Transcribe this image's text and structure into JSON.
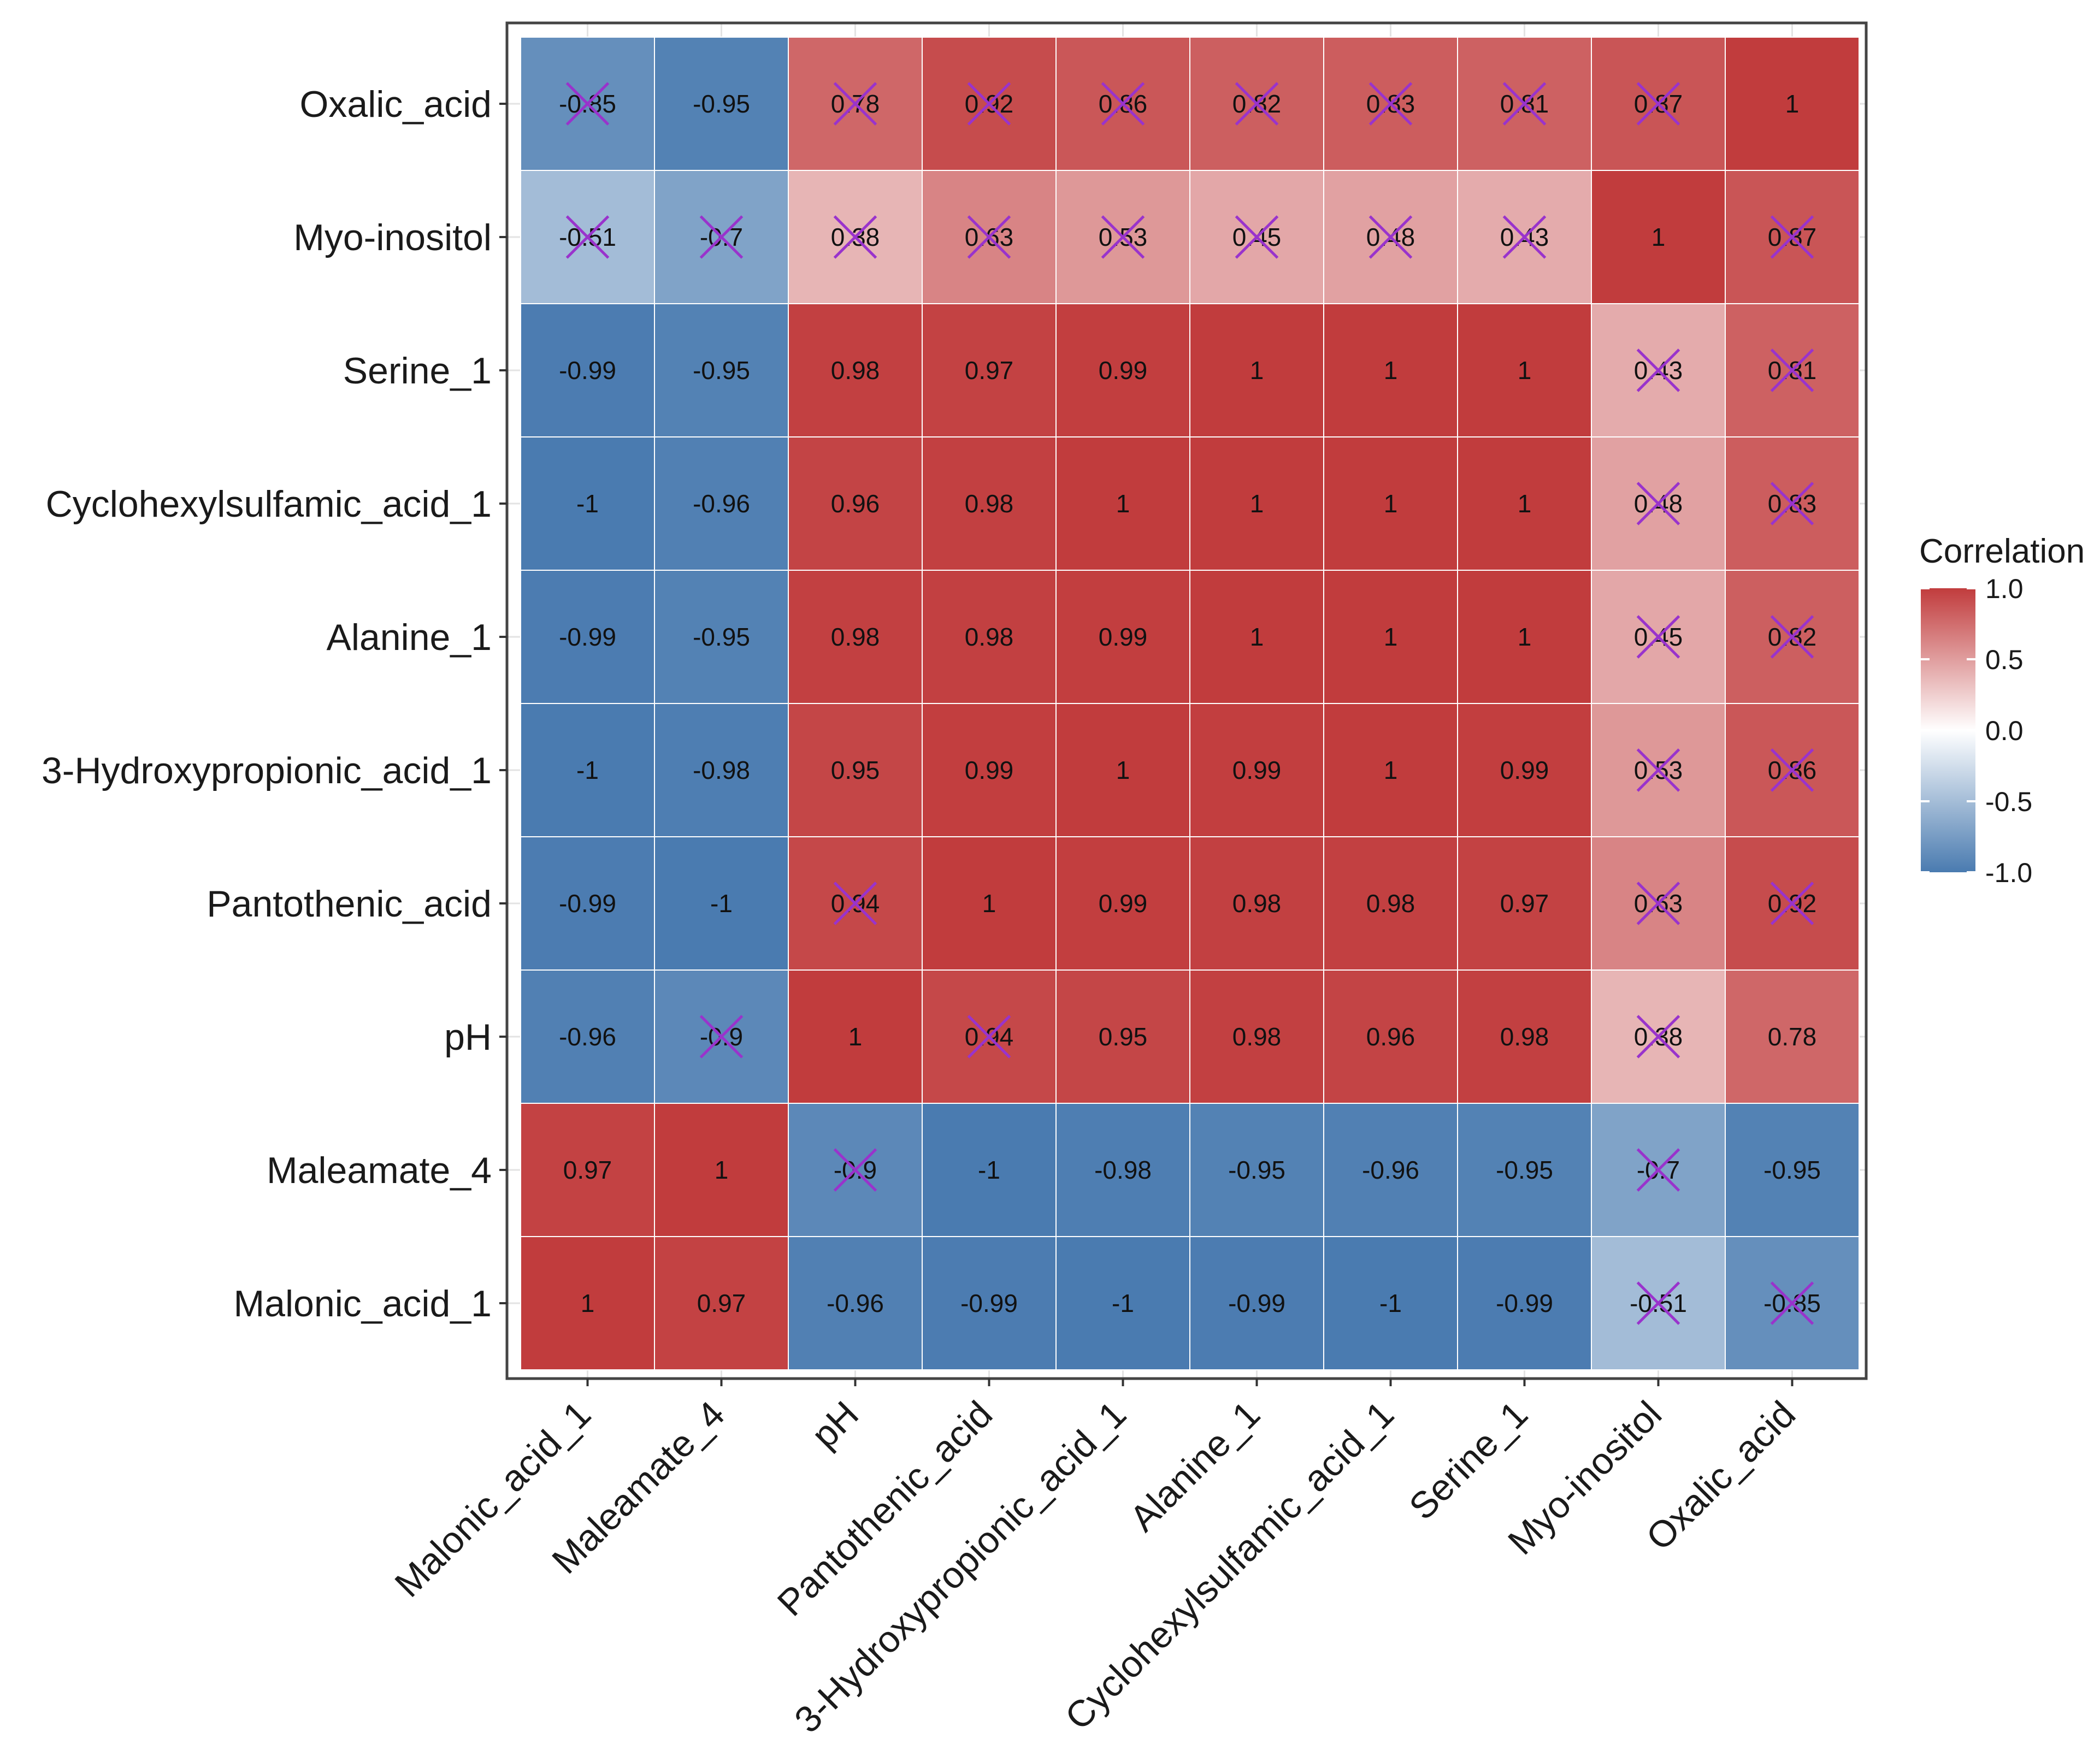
{
  "chart_data": {
    "type": "heatmap",
    "title": "",
    "xlabel": "",
    "ylabel": "",
    "variables": [
      "Malonic_acid_1",
      "Maleamate_4",
      "pH",
      "Pantothenic_acid",
      "3-Hydroxypropionic_acid_1",
      "Alanine_1",
      "Cyclohexylsulfamic_acid_1",
      "Serine_1",
      "Myo-inositol",
      "Oxalic_acid"
    ],
    "matrix": [
      [
        1,
        0.97,
        -0.96,
        -0.99,
        -1,
        -0.99,
        -1,
        -0.99,
        -0.51,
        -0.85
      ],
      [
        0.97,
        1,
        -0.9,
        -1,
        -0.98,
        -0.95,
        -0.96,
        -0.95,
        -0.7,
        -0.95
      ],
      [
        -0.96,
        -0.9,
        1,
        0.94,
        0.95,
        0.98,
        0.96,
        0.98,
        0.38,
        0.78
      ],
      [
        -0.99,
        -1,
        0.94,
        1,
        0.99,
        0.98,
        0.98,
        0.97,
        0.63,
        0.92
      ],
      [
        -1,
        -0.98,
        0.95,
        0.99,
        1,
        0.99,
        1,
        0.99,
        0.53,
        0.86
      ],
      [
        -0.99,
        -0.95,
        0.98,
        0.98,
        0.99,
        1,
        1,
        1,
        0.45,
        0.82
      ],
      [
        -1,
        -0.96,
        0.96,
        0.98,
        1,
        1,
        1,
        1,
        0.48,
        0.83
      ],
      [
        -0.99,
        -0.95,
        0.98,
        0.97,
        0.99,
        1,
        1,
        1,
        0.43,
        0.81
      ],
      [
        -0.51,
        -0.7,
        0.38,
        0.63,
        0.53,
        0.45,
        0.48,
        0.43,
        1,
        0.87
      ],
      [
        -0.85,
        -0.95,
        0.78,
        0.92,
        0.86,
        0.82,
        0.83,
        0.81,
        0.87,
        1
      ]
    ],
    "labels": [
      [
        "1",
        "0.97",
        "-0.96",
        "-0.99",
        "-1",
        "-0.99",
        "-1",
        "-0.99",
        "-0.51",
        "-0.85"
      ],
      [
        "0.97",
        "1",
        "-0.9",
        "-1",
        "-0.98",
        "-0.95",
        "-0.96",
        "-0.95",
        "-0.7",
        "-0.95"
      ],
      [
        "-0.96",
        "-0.9",
        "1",
        "0.94",
        "0.95",
        "0.98",
        "0.96",
        "0.98",
        "0.38",
        "0.78"
      ],
      [
        "-0.99",
        "-1",
        "0.94",
        "1",
        "0.99",
        "0.98",
        "0.98",
        "0.97",
        "0.63",
        "0.92"
      ],
      [
        "-1",
        "-0.98",
        "0.95",
        "0.99",
        "1",
        "0.99",
        "1",
        "0.99",
        "0.53",
        "0.86"
      ],
      [
        "-0.99",
        "-0.95",
        "0.98",
        "0.98",
        "0.99",
        "1",
        "1",
        "1",
        "0.45",
        "0.82"
      ],
      [
        "-1",
        "-0.96",
        "0.96",
        "0.98",
        "1",
        "1",
        "1",
        "1",
        "0.48",
        "0.83"
      ],
      [
        "-0.99",
        "-0.95",
        "0.98",
        "0.97",
        "0.99",
        "1",
        "1",
        "1",
        "0.43",
        "0.81"
      ],
      [
        "-0.51",
        "-0.7",
        "0.38",
        "0.63",
        "0.53",
        "0.45",
        "0.48",
        "0.43",
        "1",
        "0.87"
      ],
      [
        "-0.85",
        "-0.95",
        "0.78",
        "0.92",
        "0.86",
        "0.82",
        "0.83",
        "0.81",
        "0.87",
        "1"
      ]
    ],
    "crossed": [
      [
        false,
        false,
        false,
        false,
        false,
        false,
        false,
        false,
        true,
        true
      ],
      [
        false,
        false,
        true,
        false,
        false,
        false,
        false,
        false,
        true,
        false
      ],
      [
        false,
        true,
        false,
        true,
        false,
        false,
        false,
        false,
        true,
        false
      ],
      [
        false,
        false,
        true,
        false,
        false,
        false,
        false,
        false,
        true,
        true
      ],
      [
        false,
        false,
        false,
        false,
        false,
        false,
        false,
        false,
        true,
        true
      ],
      [
        false,
        false,
        false,
        false,
        false,
        false,
        false,
        false,
        true,
        true
      ],
      [
        false,
        false,
        false,
        false,
        false,
        false,
        false,
        false,
        true,
        true
      ],
      [
        false,
        false,
        false,
        false,
        false,
        false,
        false,
        false,
        true,
        true
      ],
      [
        true,
        true,
        true,
        true,
        true,
        true,
        true,
        true,
        false,
        true
      ],
      [
        true,
        false,
        true,
        true,
        true,
        true,
        true,
        true,
        true,
        false
      ]
    ],
    "legend": {
      "title": "Correlation",
      "ticks": [
        1.0,
        0.5,
        0.0,
        -0.5,
        -1.0
      ],
      "tick_labels": [
        "1.0",
        "0.5",
        "0.0",
        "-0.5",
        "-1.0"
      ],
      "range": [
        -1,
        1
      ],
      "placement": "right"
    },
    "colors": {
      "low": "#4a7bb0",
      "mid": "#ffffff",
      "high": "#c13c3d",
      "cross": "#9933cc",
      "grid": "#e3e3e3",
      "panel_border": "#444444"
    }
  }
}
